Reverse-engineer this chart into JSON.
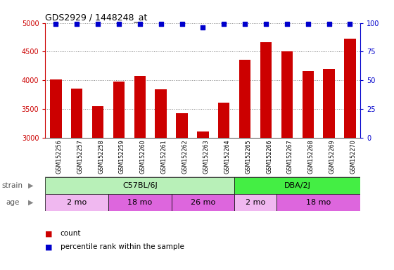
{
  "title": "GDS2929 / 1448248_at",
  "samples": [
    "GSM152256",
    "GSM152257",
    "GSM152258",
    "GSM152259",
    "GSM152260",
    "GSM152261",
    "GSM152262",
    "GSM152263",
    "GSM152264",
    "GSM152265",
    "GSM152266",
    "GSM152267",
    "GSM152268",
    "GSM152269",
    "GSM152270"
  ],
  "counts": [
    4010,
    3850,
    3550,
    3980,
    4080,
    3840,
    3420,
    3110,
    3610,
    4360,
    4660,
    4510,
    4155,
    4200,
    4730
  ],
  "percentile_ranks": [
    99,
    99,
    99,
    99,
    99,
    99,
    99,
    96,
    99,
    99,
    99,
    99,
    99,
    99,
    99
  ],
  "bar_color": "#cc0000",
  "dot_color": "#0000cc",
  "ylim_left": [
    3000,
    5000
  ],
  "ylim_right": [
    0,
    100
  ],
  "yticks_left": [
    3000,
    3500,
    4000,
    4500,
    5000
  ],
  "yticks_right": [
    0,
    25,
    50,
    75,
    100
  ],
  "strain_groups": [
    {
      "label": "C57BL/6J",
      "start": 0,
      "end": 9,
      "color": "#b8f0b8"
    },
    {
      "label": "DBA/2J",
      "start": 9,
      "end": 15,
      "color": "#44ee44"
    }
  ],
  "age_groups": [
    {
      "label": "2 mo",
      "start": 0,
      "end": 3,
      "color": "#f0b8f0"
    },
    {
      "label": "18 mo",
      "start": 3,
      "end": 6,
      "color": "#dd66dd"
    },
    {
      "label": "26 mo",
      "start": 6,
      "end": 9,
      "color": "#dd66dd"
    },
    {
      "label": "2 mo",
      "start": 9,
      "end": 11,
      "color": "#f0b8f0"
    },
    {
      "label": "18 mo",
      "start": 11,
      "end": 15,
      "color": "#dd66dd"
    }
  ],
  "strain_label": "strain",
  "age_label": "age",
  "legend_count": "count",
  "legend_percentile": "percentile rank within the sample",
  "bg_color": "#ffffff",
  "grid_color": "#888888",
  "label_bg": "#d4d4d4",
  "title_color": "#000000",
  "axis_color_left": "#cc0000",
  "axis_color_right": "#0000cc"
}
